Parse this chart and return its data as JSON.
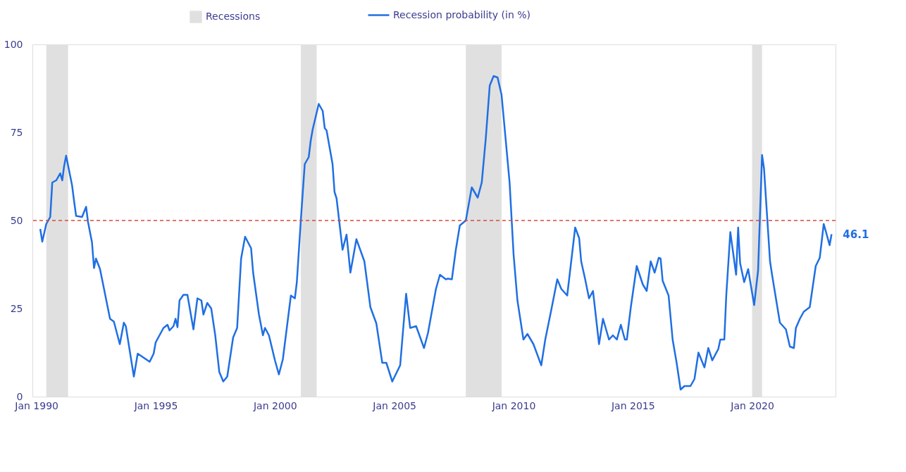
{
  "chart_data": {
    "type": "line",
    "xlim": [
      "1989-11",
      "2023-07"
    ],
    "xticks": [
      {
        "value": "1990-01",
        "label": "Jan 1990"
      },
      {
        "value": "1995-01",
        "label": "Jan 1995"
      },
      {
        "value": "2000-01",
        "label": "Jan 2000"
      },
      {
        "value": "2005-01",
        "label": "Jan 2005"
      },
      {
        "value": "2010-01",
        "label": "Jan 2010"
      },
      {
        "value": "2015-01",
        "label": "Jan 2015"
      },
      {
        "value": "2020-01",
        "label": "Jan 2020"
      }
    ],
    "ylim": [
      0,
      100
    ],
    "yticks": [
      0,
      25,
      50,
      75,
      100
    ],
    "grid": false,
    "legend": "top",
    "line_style": "solid",
    "marker": "none",
    "series": [
      {
        "name": "Recession probability (in %)",
        "color": "#1f6fe3",
        "x": [
          "1990-03",
          "1990-04",
          "1990-06",
          "1990-08",
          "1990-09",
          "1990-11",
          "1991-01",
          "1991-02",
          "1991-03",
          "1991-04",
          "1991-07",
          "1991-08",
          "1991-09",
          "1991-12",
          "1992-02",
          "1992-03",
          "1992-05",
          "1992-06",
          "1992-07",
          "1992-09",
          "1992-11",
          "1993-02",
          "1993-04",
          "1993-07",
          "1993-09",
          "1993-10",
          "1994-02",
          "1994-04",
          "1994-10",
          "1994-12",
          "1995-01",
          "1995-05",
          "1995-07",
          "1995-08",
          "1995-10",
          "1995-11",
          "1995-12",
          "1996-01",
          "1996-03",
          "1996-05",
          "1996-08",
          "1996-10",
          "1996-12",
          "1997-01",
          "1997-03",
          "1997-05",
          "1997-07",
          "1997-09",
          "1997-11",
          "1998-01",
          "1998-04",
          "1998-06",
          "1998-08",
          "1998-10",
          "1999-01",
          "1999-02",
          "1999-05",
          "1999-07",
          "1999-08",
          "1999-10",
          "2000-01",
          "2000-03",
          "2000-05",
          "2000-09",
          "2000-11",
          "2000-12",
          "2001-02",
          "2001-04",
          "2001-06",
          "2001-07",
          "2001-08",
          "2001-11",
          "2002-01",
          "2002-02",
          "2002-03",
          "2002-06",
          "2002-07",
          "2002-08",
          "2002-11",
          "2003-01",
          "2003-03",
          "2003-06",
          "2003-10",
          "2004-01",
          "2004-04",
          "2004-07",
          "2004-09",
          "2004-12",
          "2005-04",
          "2005-07",
          "2005-09",
          "2005-12",
          "2006-04",
          "2006-06",
          "2006-10",
          "2006-12",
          "2007-03",
          "2007-04",
          "2007-06",
          "2007-08",
          "2007-10",
          "2008-01",
          "2008-04",
          "2008-07",
          "2008-09",
          "2008-11",
          "2009-01",
          "2009-03",
          "2009-05",
          "2009-07",
          "2009-09",
          "2009-11",
          "2010-01",
          "2010-03",
          "2010-06",
          "2010-08",
          "2010-11",
          "2011-03",
          "2011-05",
          "2011-08",
          "2011-11",
          "2012-01",
          "2012-04",
          "2012-08",
          "2012-10",
          "2012-11",
          "2013-01",
          "2013-03",
          "2013-05",
          "2013-08",
          "2013-10",
          "2014-01",
          "2014-03",
          "2014-05",
          "2014-07",
          "2014-09",
          "2014-10",
          "2014-12",
          "2015-03",
          "2015-06",
          "2015-08",
          "2015-10",
          "2015-12",
          "2016-02",
          "2016-03",
          "2016-04",
          "2016-07",
          "2016-09",
          "2016-11",
          "2017-01",
          "2017-03",
          "2017-06",
          "2017-08",
          "2017-10",
          "2018-01",
          "2018-03",
          "2018-05",
          "2018-08",
          "2018-09",
          "2018-11",
          "2018-12",
          "2019-02",
          "2019-05",
          "2019-06",
          "2019-07",
          "2019-09",
          "2019-11",
          "2020-02",
          "2020-04",
          "2020-06",
          "2020-07",
          "2020-10",
          "2020-11",
          "2021-03",
          "2021-06",
          "2021-08",
          "2021-10",
          "2021-11",
          "2022-01",
          "2022-03",
          "2022-06",
          "2022-09",
          "2022-11",
          "2023-01",
          "2023-02",
          "2023-04",
          "2023-05"
        ],
        "values": [
          47.6,
          44,
          49,
          51,
          60.8,
          61.4,
          63.4,
          61.4,
          65.4,
          68.4,
          60,
          55.5,
          51.3,
          51,
          53.9,
          49.6,
          43.8,
          36.5,
          39.2,
          36.2,
          30.6,
          22.1,
          21.3,
          14.9,
          21,
          20,
          5.7,
          12.2,
          9.9,
          12.2,
          15.4,
          19.5,
          20.4,
          18.8,
          20,
          22.1,
          19.7,
          27.3,
          28.9,
          28.9,
          19.1,
          27.9,
          27.3,
          23.3,
          26.6,
          25,
          17.4,
          7,
          4.3,
          5.7,
          16.8,
          19.5,
          39.2,
          45.4,
          42.1,
          35.2,
          23.3,
          17.4,
          19.5,
          17.4,
          10.3,
          6.3,
          10.6,
          28.7,
          27.9,
          32.5,
          50.3,
          66,
          68,
          72.6,
          75.9,
          83.1,
          81.1,
          76.2,
          75.6,
          66,
          58.1,
          56.3,
          41.7,
          46,
          35.2,
          44.7,
          38.4,
          25.4,
          20.8,
          9.6,
          9.6,
          4.3,
          8.9,
          29.2,
          19.5,
          20,
          13.8,
          18.1,
          30.6,
          34.6,
          33.3,
          33.5,
          33.3,
          41.7,
          48.6,
          50,
          59.4,
          56.5,
          60.8,
          73.2,
          88.3,
          91,
          90.6,
          85.7,
          73.2,
          60.8,
          40.4,
          27.3,
          16.2,
          17.8,
          14.9,
          8.9,
          16.2,
          24.6,
          33.3,
          30.6,
          28.7,
          48,
          45,
          38.4,
          33.3,
          27.9,
          30,
          14.9,
          22.1,
          16.2,
          17.4,
          16.2,
          20.4,
          16.2,
          16.2,
          25.4,
          37.1,
          31.9,
          30,
          38.4,
          35.2,
          39.4,
          39.2,
          32.9,
          28.7,
          16.2,
          9.6,
          2,
          3,
          3,
          5,
          12.5,
          8.3,
          13.8,
          10.3,
          13.5,
          16.2,
          16.2,
          28.7,
          46.7,
          34.6,
          48,
          37.9,
          32.5,
          36.2,
          26,
          35.8,
          68.6,
          64.7,
          38.4,
          34.6,
          21,
          19.1,
          14.2,
          13.8,
          19.5,
          22.1,
          24.1,
          25.4,
          37.1,
          39.4,
          49,
          47,
          43,
          46.1
        ]
      }
    ],
    "bands": [
      {
        "axis": "x",
        "from": "1990-06",
        "to": "1991-05",
        "label": "Recessions",
        "color": "#e0e0e0"
      },
      {
        "axis": "x",
        "from": "2001-02",
        "to": "2001-10",
        "color": "#e0e0e0"
      },
      {
        "axis": "x",
        "from": "2008-01",
        "to": "2009-07",
        "color": "#e0e0e0"
      },
      {
        "axis": "x",
        "from": "2020-01",
        "to": "2020-06",
        "color": "#e0e0e0"
      }
    ],
    "ref_lines": [
      {
        "axis": "y",
        "value": 50,
        "color": "#d9493a",
        "line_style": "dashed"
      }
    ],
    "annotations": [
      {
        "text": "46.1",
        "x": "2023-05",
        "y": 46.1
      }
    ]
  }
}
